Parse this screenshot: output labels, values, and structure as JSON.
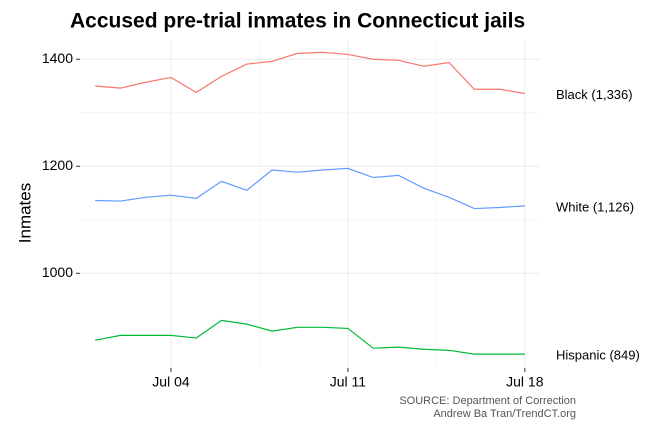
{
  "chart_data": {
    "type": "line",
    "title": "Accused pre-trial inmates in Connecticut jails",
    "y_label": "Inmates",
    "source": [
      "SOURCE: Department of Correction",
      "Andrew Ba Tran/TrendCT.org"
    ],
    "x": [
      1,
      2,
      3,
      4,
      5,
      6,
      7,
      8,
      9,
      10,
      11,
      12,
      13,
      14,
      15,
      16,
      17,
      18
    ],
    "xlim": [
      0.4,
      18.6
    ],
    "xticks": [
      {
        "value": 4,
        "label": "Jul 04"
      },
      {
        "value": 11,
        "label": "Jul 11"
      },
      {
        "value": 18,
        "label": "Jul 18"
      }
    ],
    "ylim": [
      823,
      1436
    ],
    "yticks": [
      1000,
      1200,
      1400
    ],
    "grid": true,
    "series": [
      {
        "name": "Black (1,336)",
        "color": "#F8766D",
        "values": [
          1350,
          1346,
          1357,
          1366,
          1338,
          1368,
          1391,
          1396,
          1411,
          1413,
          1409,
          1400,
          1398,
          1387,
          1394,
          1344,
          1344,
          1336
        ]
      },
      {
        "name": "White (1,126)",
        "color": "#619CFF",
        "values": [
          1136,
          1135,
          1142,
          1146,
          1140,
          1172,
          1155,
          1193,
          1189,
          1193,
          1196,
          1179,
          1183,
          1159,
          1142,
          1121,
          1123,
          1126
        ]
      },
      {
        "name": "Hispanic (849)",
        "color": "#00BA38",
        "values": [
          875,
          884,
          884,
          884,
          879,
          912,
          905,
          892,
          899,
          899,
          897,
          860,
          862,
          858,
          856,
          849,
          849,
          849
        ]
      }
    ]
  }
}
